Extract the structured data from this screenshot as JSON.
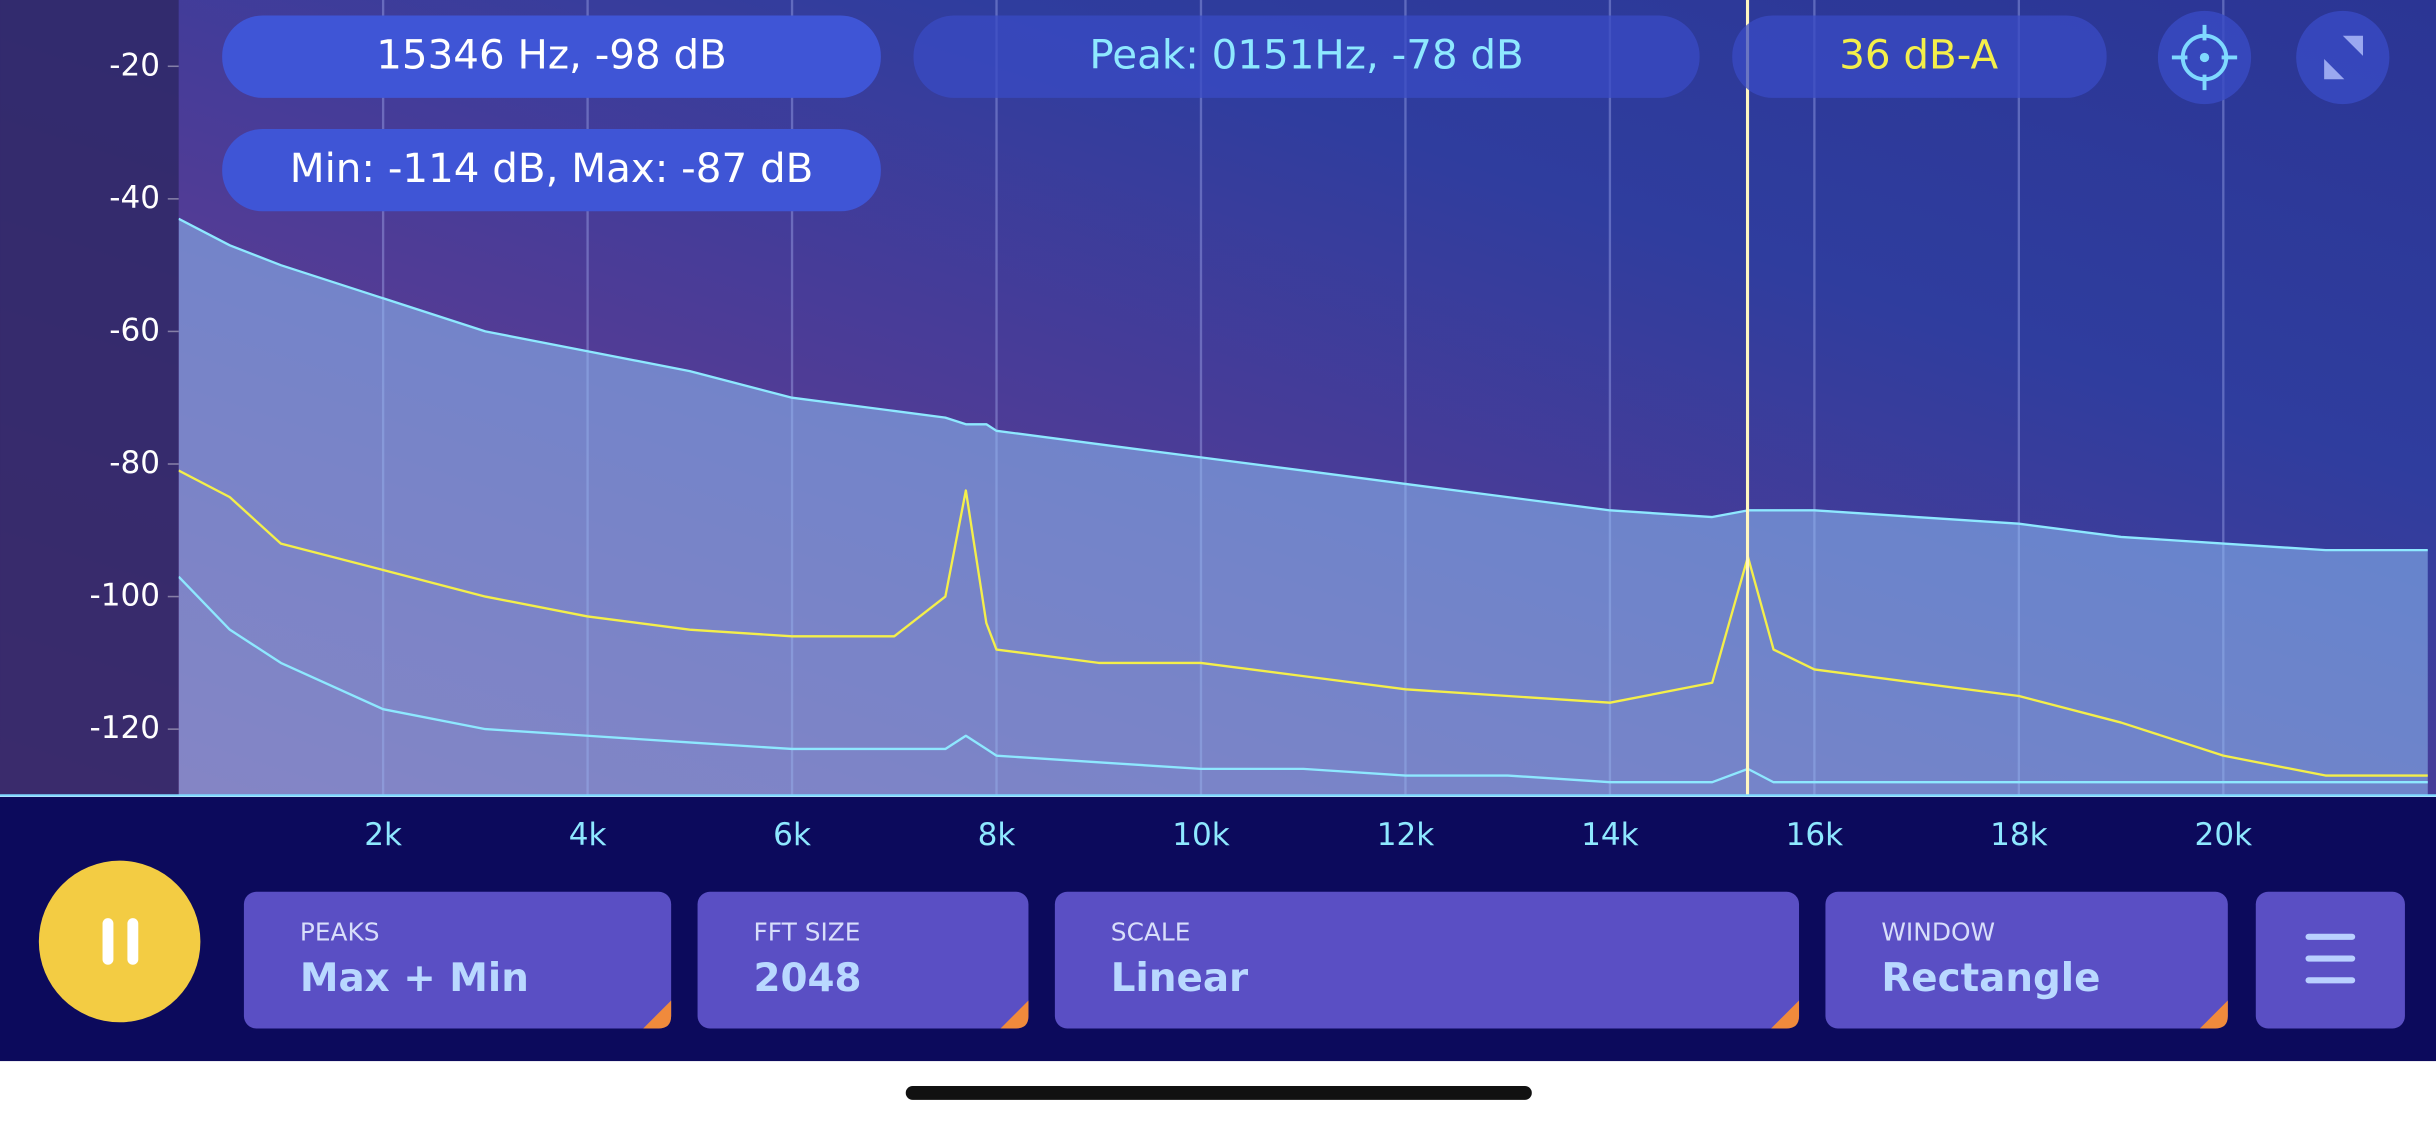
{
  "status": {
    "cursor_readout": "15346 Hz, -98 dB",
    "peak": "Peak: 0151Hz, -78 dB",
    "level": "36 dB-A",
    "range": "Min: -114 dB, Max: -87 dB"
  },
  "chart_data": {
    "type": "line",
    "x": [
      0,
      500,
      1000,
      2000,
      3000,
      4000,
      5000,
      6000,
      7000,
      7500,
      7700,
      7900,
      8000,
      9000,
      10000,
      11000,
      12000,
      13000,
      14000,
      15000,
      15350,
      15600,
      16000,
      17000,
      18000,
      19000,
      20000,
      21000,
      22000
    ],
    "series": [
      {
        "color": "#8ee8ff",
        "values": [
          -43,
          -47,
          -50,
          -55,
          -60,
          -63,
          -66,
          -70,
          -72,
          -73,
          -74,
          -74,
          -75,
          -77,
          -79,
          -81,
          -83,
          -85,
          -87,
          -88,
          -87,
          -87,
          -87,
          -88,
          -89,
          -91,
          -92,
          -93,
          -93
        ]
      },
      {
        "color": "#f4ef4a",
        "values": [
          -81,
          -85,
          -92,
          -96,
          -100,
          -103,
          -105,
          -106,
          -106,
          -100,
          -84,
          -104,
          -108,
          -110,
          -110,
          -112,
          -114,
          -115,
          -116,
          -113,
          -94,
          -108,
          -111,
          -113,
          -115,
          -119,
          -124,
          -127,
          -127
        ]
      },
      {
        "color": "#8ee8ff",
        "values": [
          -97,
          -105,
          -110,
          -117,
          -120,
          -121,
          -122,
          -123,
          -123,
          -123,
          -121,
          -123,
          -124,
          -125,
          -126,
          -126,
          -127,
          -127,
          -128,
          -128,
          -126,
          -128,
          -128,
          -128,
          -128,
          -128,
          -128,
          -128,
          -128
        ]
      }
    ],
    "xlim": [
      0,
      22050
    ],
    "ylim": [
      -130,
      -10
    ],
    "yticks": [
      -20,
      -40,
      -60,
      -80,
      -100,
      -120
    ],
    "xticks": [
      {
        "value": 2000,
        "label": "2k"
      },
      {
        "value": 4000,
        "label": "4k"
      },
      {
        "value": 6000,
        "label": "6k"
      },
      {
        "value": 8000,
        "label": "8k"
      },
      {
        "value": 10000,
        "label": "10k"
      },
      {
        "value": 12000,
        "label": "12k"
      },
      {
        "value": 14000,
        "label": "14k"
      },
      {
        "value": 16000,
        "label": "16k"
      },
      {
        "value": 18000,
        "label": "18k"
      },
      {
        "value": 20000,
        "label": "20k"
      }
    ],
    "grid": true,
    "cursor_x": 15346
  },
  "controls": [
    {
      "label": "PEAKS",
      "value": "Max + Min"
    },
    {
      "label": "FFT SIZE",
      "value": "2048"
    },
    {
      "label": "SCALE",
      "value": "Linear"
    },
    {
      "label": "WINDOW",
      "value": "Rectangle"
    }
  ]
}
